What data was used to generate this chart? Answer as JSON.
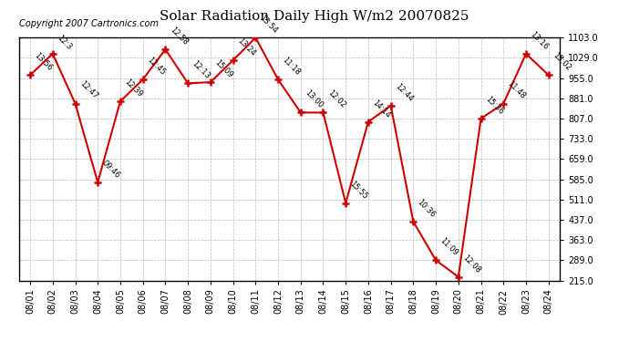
{
  "title": "Solar Radiation Daily High W/m2 20070825",
  "copyright": "Copyright 2007 Cartronics.com",
  "dates": [
    "08/01",
    "08/02",
    "08/03",
    "08/04",
    "08/05",
    "08/06",
    "08/07",
    "08/08",
    "08/09",
    "08/10",
    "08/11",
    "08/12",
    "08/13",
    "08/14",
    "08/15",
    "08/16",
    "08/17",
    "08/18",
    "08/19",
    "08/20",
    "08/21",
    "08/22",
    "08/23",
    "08/24"
  ],
  "values": [
    966,
    1044,
    862,
    574,
    870,
    950,
    1060,
    936,
    940,
    1020,
    1103,
    950,
    829,
    829,
    498,
    795,
    854,
    430,
    289,
    228,
    807,
    862,
    1044,
    966
  ],
  "time_labels": [
    "13:56",
    "12:3",
    "12:47",
    "09:46",
    "12:39",
    "12:45",
    "12:58",
    "12:13",
    "15:09",
    "13:24",
    "13:54",
    "11:18",
    "13:00",
    "12:02",
    "15:55",
    "14:14",
    "12:44",
    "10:36",
    "11:09",
    "12:08",
    "15:36",
    "11:48",
    "13:16",
    "15:02"
  ],
  "yticks": [
    215.0,
    289.0,
    363.0,
    437.0,
    511.0,
    585.0,
    659.0,
    733.0,
    807.0,
    881.0,
    955.0,
    1029.0,
    1103.0
  ],
  "ymin": 215.0,
  "ymax": 1103.0,
  "line_color": "#cc0000",
  "marker_color": "#cc0000",
  "bg_color": "#ffffff",
  "grid_color": "#bbbbbb",
  "title_fontsize": 11,
  "tick_fontsize": 7,
  "annot_fontsize": 6,
  "copyright_fontsize": 7
}
